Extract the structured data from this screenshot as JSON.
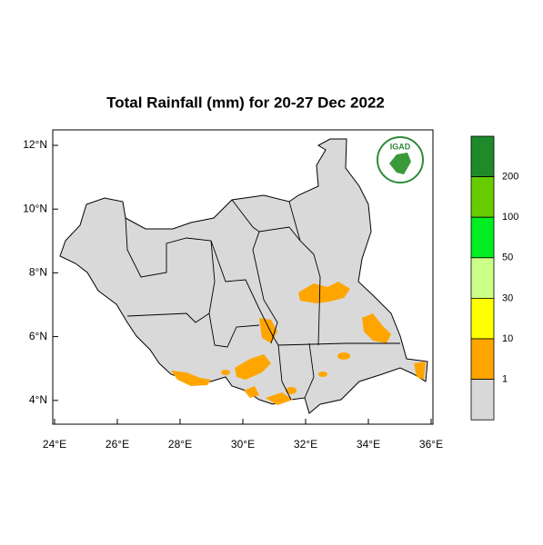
{
  "title": "Total Rainfall (mm) for 20-27 Dec 2022",
  "logo": {
    "text": "IGAD"
  },
  "map": {
    "xticks": [
      {
        "value": 24,
        "label": "24°E"
      },
      {
        "value": 26,
        "label": "26°E"
      },
      {
        "value": 28,
        "label": "28°E"
      },
      {
        "value": 30,
        "label": "30°E"
      },
      {
        "value": 32,
        "label": "32°E"
      },
      {
        "value": 34,
        "label": "34°E"
      },
      {
        "value": 36,
        "label": "36°E"
      }
    ],
    "yticks": [
      {
        "value": 4,
        "label": "4°N"
      },
      {
        "value": 6,
        "label": "6°N"
      },
      {
        "value": 8,
        "label": "8°N"
      },
      {
        "value": 10,
        "label": "10°N"
      },
      {
        "value": 12,
        "label": "12°N"
      }
    ]
  },
  "legend": {
    "levels": [
      200,
      100,
      50,
      30,
      10,
      1
    ],
    "colors": [
      "#1f8a2a",
      "#66cc00",
      "#00ee22",
      "#ccff88",
      "#ffff00",
      "#ffa500",
      "#d8d8d8"
    ]
  }
}
